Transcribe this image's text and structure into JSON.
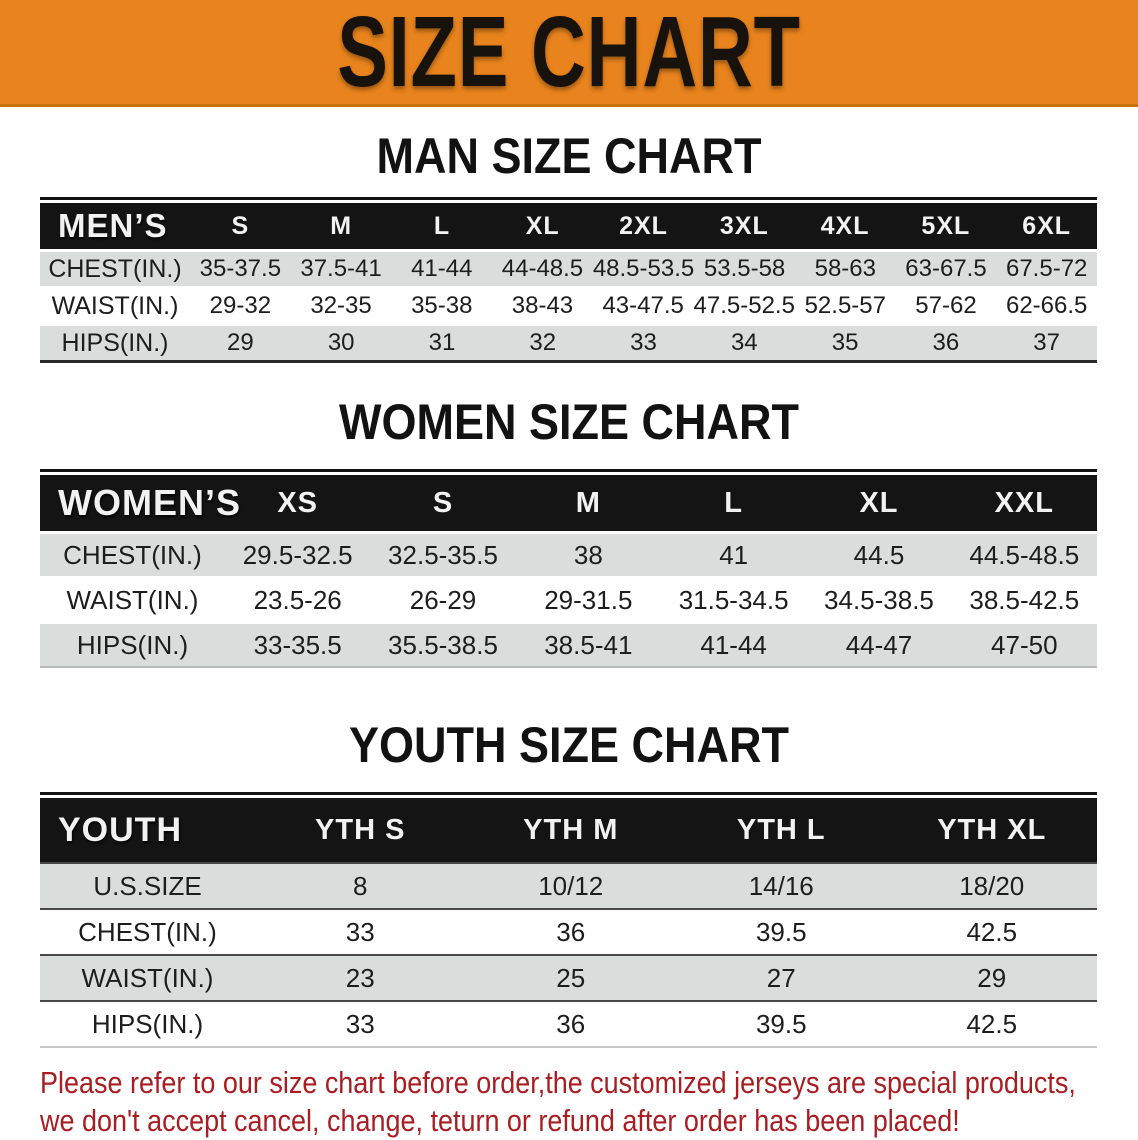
{
  "banner": {
    "title": "SIZE CHART",
    "bg": "#E8831D"
  },
  "sections": [
    {
      "heading": "MAN SIZE CHART",
      "table": {
        "label": "MEN’S",
        "columns": [
          "S",
          "M",
          "L",
          "XL",
          "2XL",
          "3XL",
          "4XL",
          "5XL",
          "6XL"
        ],
        "rows": [
          {
            "label": "CHEST(IN.)",
            "values": [
              "35-37.5",
              "37.5-41",
              "41-44",
              "44-48.5",
              "48.5-53.5",
              "53.5-58",
              "58-63",
              "63-67.5",
              "67.5-72"
            ]
          },
          {
            "label": "WAIST(IN.)",
            "values": [
              "29-32",
              "32-35",
              "35-38",
              "38-43",
              "43-47.5",
              "47.5-52.5",
              "52.5-57",
              "57-62",
              "62-66.5"
            ]
          },
          {
            "label": "HIPS(IN.)",
            "values": [
              "29",
              "30",
              "31",
              "32",
              "33",
              "34",
              "35",
              "36",
              "37"
            ]
          }
        ]
      }
    },
    {
      "heading": "WOMEN SIZE CHART",
      "table": {
        "label": "WOMEN’S",
        "columns": [
          "XS",
          "S",
          "M",
          "L",
          "XL",
          "XXL"
        ],
        "rows": [
          {
            "label": "CHEST(IN.)",
            "values": [
              "29.5-32.5",
              "32.5-35.5",
              "38",
              "41",
              "44.5",
              "44.5-48.5"
            ]
          },
          {
            "label": "WAIST(IN.)",
            "values": [
              "23.5-26",
              "26-29",
              "29-31.5",
              "31.5-34.5",
              "34.5-38.5",
              "38.5-42.5"
            ]
          },
          {
            "label": "HIPS(IN.)",
            "values": [
              "33-35.5",
              "35.5-38.5",
              "38.5-41",
              "41-44",
              "44-47",
              "47-50"
            ]
          }
        ]
      }
    },
    {
      "heading": "YOUTH SIZE CHART",
      "table": {
        "label": "YOUTH",
        "columns": [
          "YTH S",
          "YTH M",
          "YTH L",
          "YTH XL"
        ],
        "rows": [
          {
            "label": "U.S.SIZE",
            "values": [
              "8",
              "10/12",
              "14/16",
              "18/20"
            ]
          },
          {
            "label": "CHEST(IN.)",
            "values": [
              "33",
              "36",
              "39.5",
              "42.5"
            ]
          },
          {
            "label": "WAIST(IN.)",
            "values": [
              "23",
              "25",
              "27",
              "29"
            ]
          },
          {
            "label": "HIPS(IN.)",
            "values": [
              "33",
              "36",
              "39.5",
              "42.5"
            ]
          }
        ]
      }
    }
  ],
  "disclaimer": {
    "line1": "Please refer to our size chart before order,the customized jerseys are special products,",
    "line2": "we don't accept cancel, change, teturn or refund after order has been placed!",
    "color": "#a91e22"
  }
}
